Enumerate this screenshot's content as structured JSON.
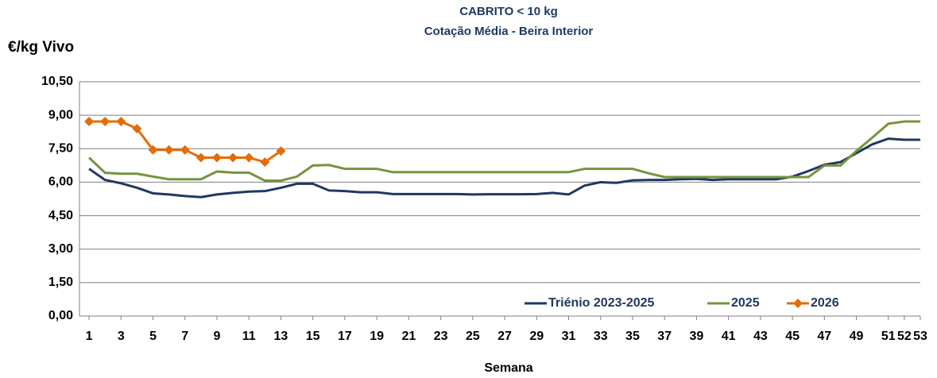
{
  "chart_data": {
    "type": "line",
    "title": "CABRITO < 10 kg",
    "subtitle": "Cotação Média - Beira Interior",
    "y_label": "€/kg Vivo",
    "x_label": "Semana",
    "x": [
      1,
      2,
      3,
      4,
      5,
      6,
      7,
      8,
      9,
      10,
      11,
      12,
      13,
      14,
      15,
      16,
      17,
      18,
      19,
      20,
      21,
      22,
      23,
      24,
      25,
      26,
      27,
      28,
      29,
      30,
      31,
      32,
      33,
      34,
      35,
      36,
      37,
      38,
      39,
      40,
      41,
      42,
      43,
      44,
      45,
      46,
      47,
      48,
      49,
      50,
      51,
      52,
      53
    ],
    "xlim": [
      0.4,
      53
    ],
    "xticks": [
      1,
      3,
      5,
      7,
      9,
      11,
      13,
      15,
      17,
      19,
      21,
      23,
      25,
      27,
      29,
      31,
      33,
      35,
      37,
      39,
      41,
      43,
      45,
      47,
      49,
      51,
      52,
      53
    ],
    "ylim": [
      0,
      10.5
    ],
    "yticks": [
      {
        "value": 0,
        "label": "0,00"
      },
      {
        "value": 1.5,
        "label": "1,50"
      },
      {
        "value": 3,
        "label": "3,00"
      },
      {
        "value": 4.5,
        "label": "4,50"
      },
      {
        "value": 6,
        "label": "6,00"
      },
      {
        "value": 7.5,
        "label": "7,50"
      },
      {
        "value": 9,
        "label": "9,00"
      },
      {
        "value": 10.5,
        "label": "10,50"
      }
    ],
    "grid": true,
    "legend": "bottom-right",
    "series": [
      {
        "name": "Triénio 2023-2025",
        "color": "#1f3864",
        "marker": false,
        "values": [
          6.6,
          6.1,
          5.95,
          5.75,
          5.5,
          5.45,
          5.38,
          5.33,
          5.45,
          5.52,
          5.58,
          5.6,
          5.75,
          5.93,
          5.93,
          5.63,
          5.6,
          5.55,
          5.55,
          5.47,
          5.47,
          5.47,
          5.47,
          5.47,
          5.45,
          5.46,
          5.46,
          5.46,
          5.47,
          5.52,
          5.45,
          5.85,
          6.0,
          5.97,
          6.08,
          6.1,
          6.1,
          6.13,
          6.15,
          6.1,
          6.13,
          6.13,
          6.13,
          6.13,
          6.25,
          6.5,
          6.78,
          6.9,
          7.3,
          7.7,
          7.95,
          7.9,
          7.9
        ]
      },
      {
        "name": "2025",
        "color": "#77933c",
        "marker": false,
        "values": [
          7.1,
          6.42,
          6.38,
          6.38,
          6.25,
          6.13,
          6.13,
          6.13,
          6.48,
          6.43,
          6.43,
          6.07,
          6.07,
          6.25,
          6.75,
          6.77,
          6.6,
          6.6,
          6.6,
          6.45,
          6.45,
          6.45,
          6.45,
          6.45,
          6.45,
          6.45,
          6.45,
          6.45,
          6.45,
          6.45,
          6.45,
          6.6,
          6.6,
          6.6,
          6.6,
          6.4,
          6.23,
          6.23,
          6.23,
          6.23,
          6.23,
          6.23,
          6.23,
          6.23,
          6.23,
          6.23,
          6.75,
          6.75,
          7.4,
          8.0,
          8.62,
          8.72,
          8.72
        ]
      },
      {
        "name": "2026",
        "color": "#e46c0a",
        "marker": true,
        "values": [
          8.72,
          8.72,
          8.72,
          8.4,
          7.45,
          7.45,
          7.45,
          7.1,
          7.1,
          7.1,
          7.1,
          6.9,
          7.4,
          null,
          null,
          null,
          null,
          null,
          null,
          null,
          null,
          null,
          null,
          null,
          null,
          null,
          null,
          null,
          null,
          null,
          null,
          null,
          null,
          null,
          null,
          null,
          null,
          null,
          null,
          null,
          null,
          null,
          null,
          null,
          null,
          null,
          null,
          null,
          null,
          null,
          null,
          null,
          null
        ]
      }
    ]
  }
}
